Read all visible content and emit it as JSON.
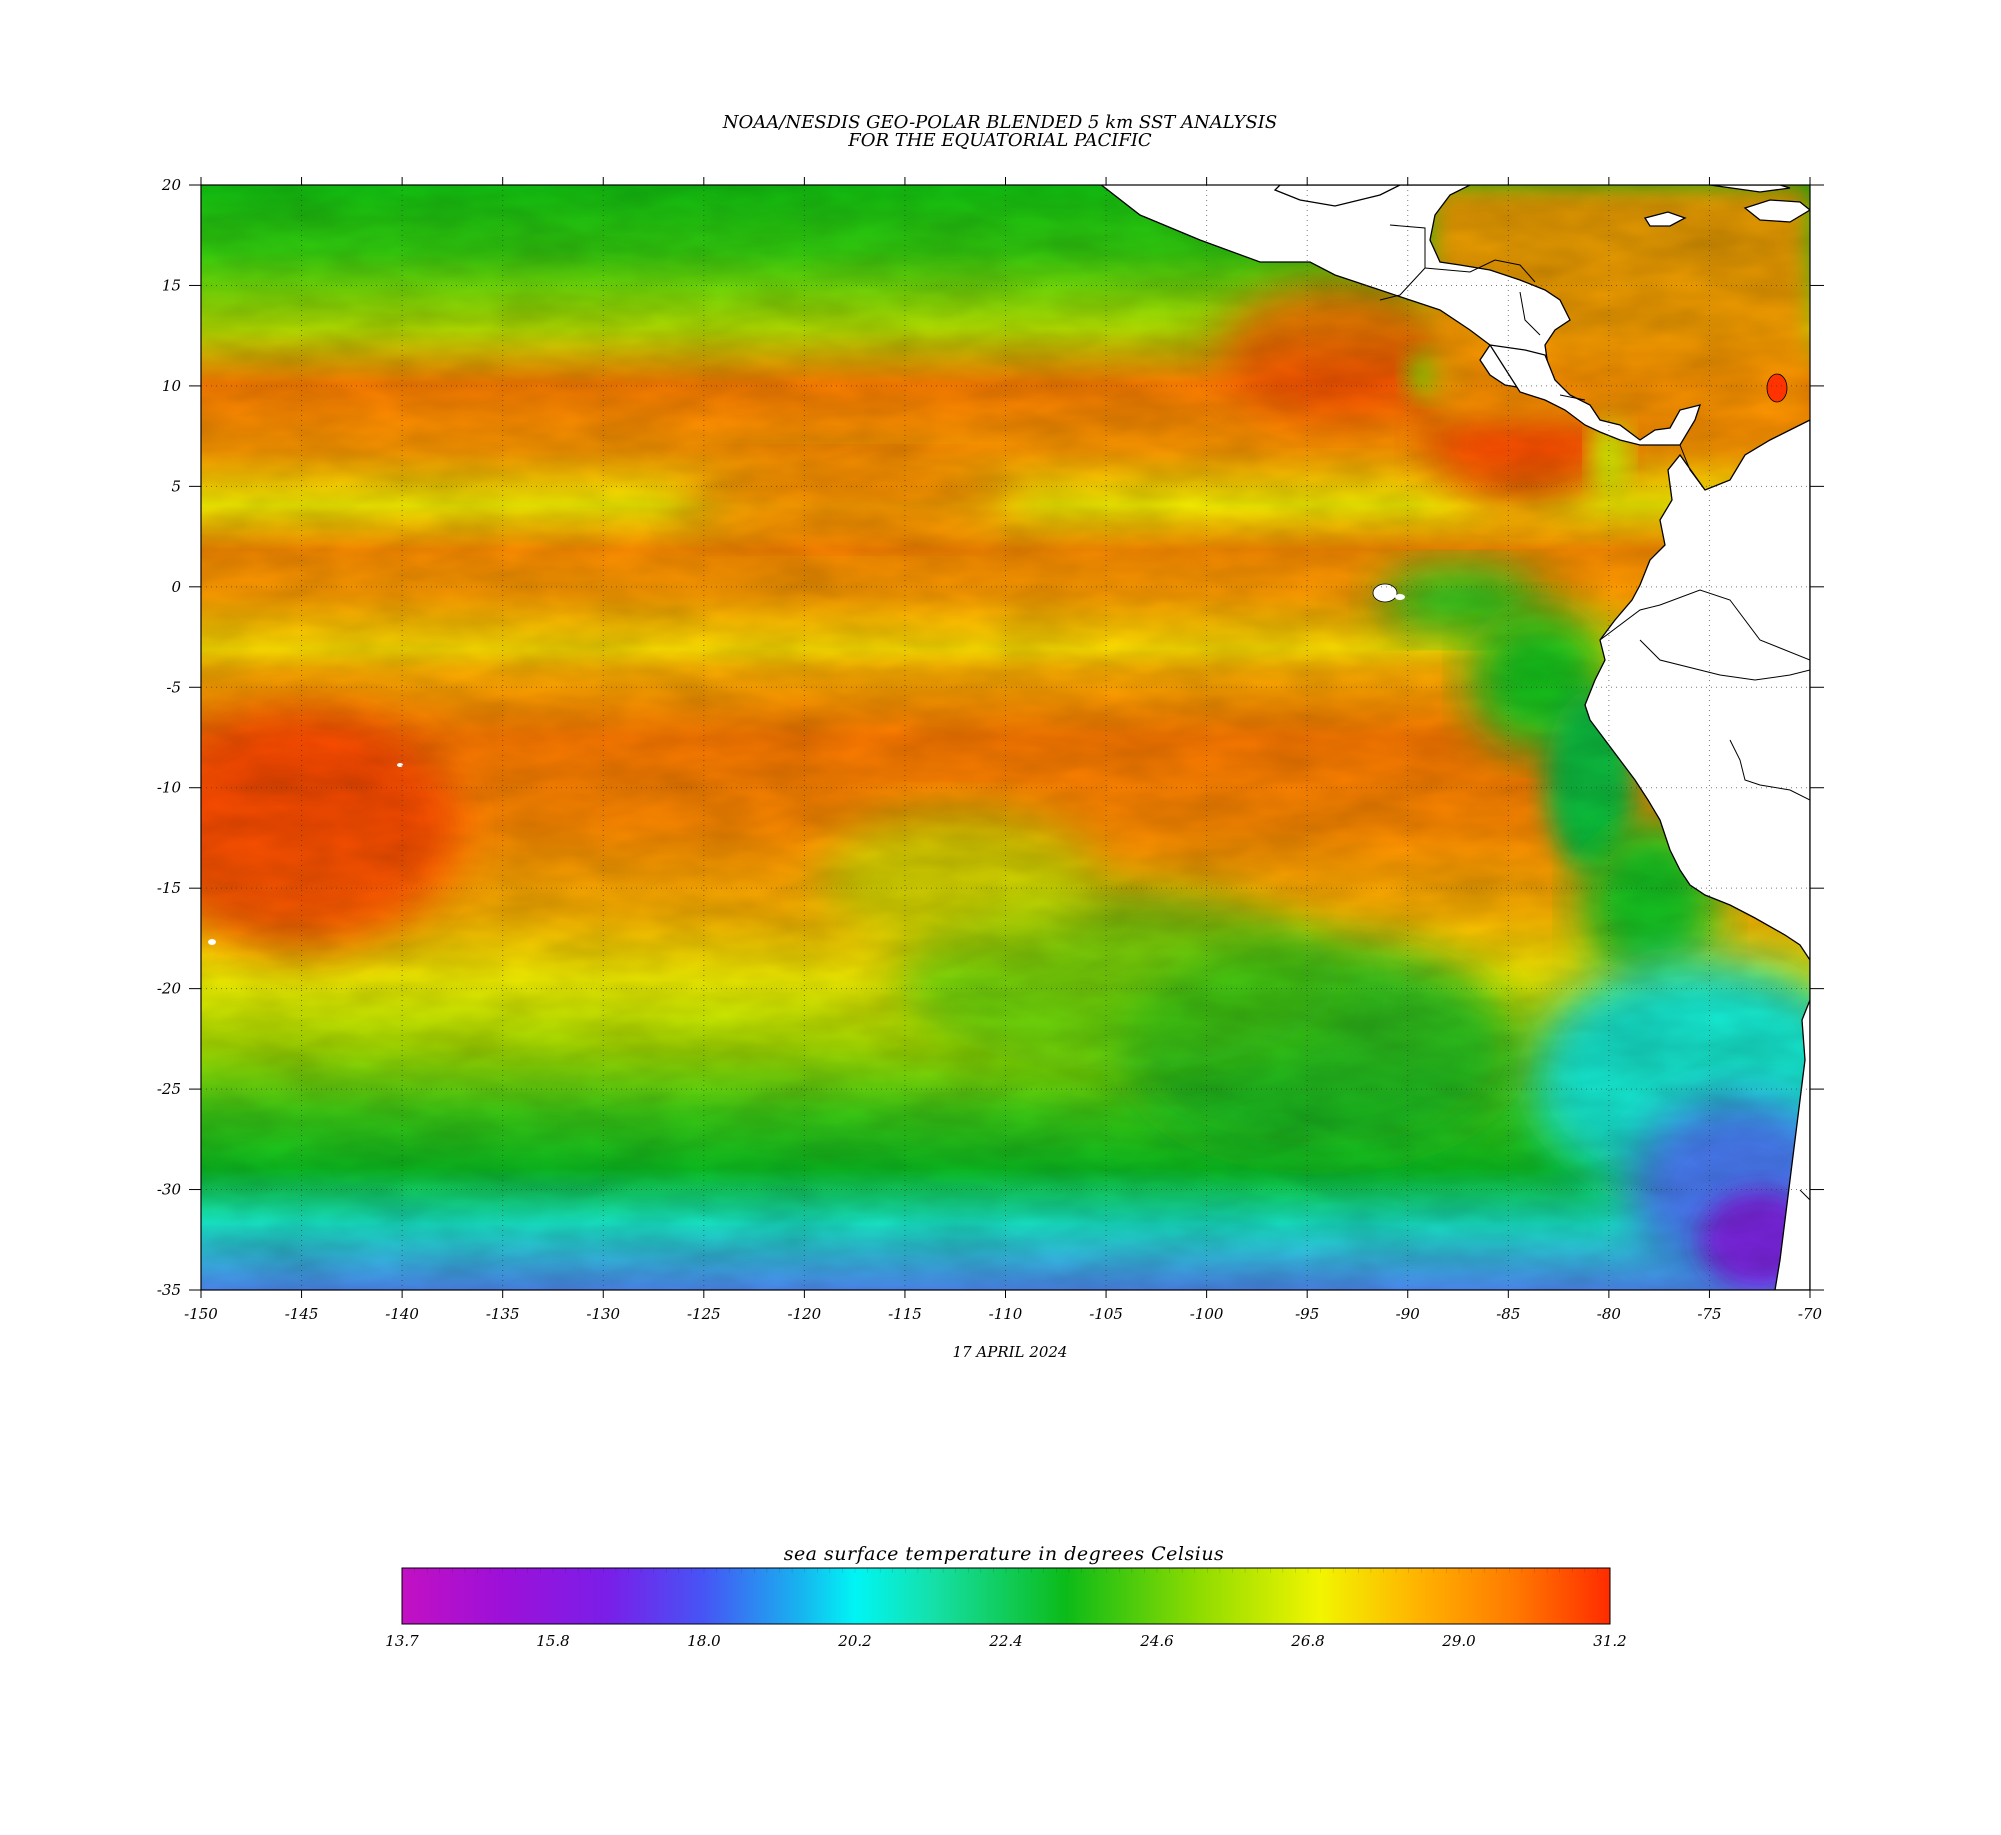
{
  "map": {
    "title_line1": "NOAA/NESDIS GEO-POLAR BLENDED 5 km SST ANALYSIS",
    "title_line2": "FOR THE EQUATORIAL PACIFIC",
    "date": "17 APRIL 2024",
    "variable": "sea surface temperature",
    "extent": {
      "lon": [
        -150,
        -70
      ],
      "lat": [
        -35,
        20
      ]
    },
    "lon_ticks": [
      "-150",
      "-145",
      "-140",
      "-135",
      "-130",
      "-125",
      "-120",
      "-115",
      "-110",
      "-105",
      "-100",
      "-95",
      "-90",
      "-85",
      "-80",
      "-75",
      "-70"
    ],
    "lat_ticks": [
      "20",
      "15",
      "10",
      "5",
      "0",
      "-5",
      "-10",
      "-15",
      "-20",
      "-25",
      "-30",
      "-35"
    ],
    "grid_lines": "dotted",
    "land_color": "#ffffff",
    "features": [
      "coastlines",
      "national boundaries",
      "Galapagos Islands",
      "Caribbean Sea",
      "Central America",
      "South America"
    ]
  },
  "colorbar": {
    "label": "sea surface temperature in degrees Celsius",
    "tick_labels": [
      "13.7",
      "15.8",
      "18.0",
      "20.2",
      "22.4",
      "24.6",
      "26.8",
      "29.0",
      "31.2"
    ],
    "range": [
      13.7,
      31.2
    ],
    "colors": [
      "#c310c3",
      "#9e10d8",
      "#7a1ee8",
      "#4655f5",
      "#17b4ef",
      "#00f5f5",
      "#15e0a8",
      "#0cbb18",
      "#8fdc00",
      "#f2f500",
      "#ffb400",
      "#ff7a00",
      "#ff2c00"
    ]
  }
}
